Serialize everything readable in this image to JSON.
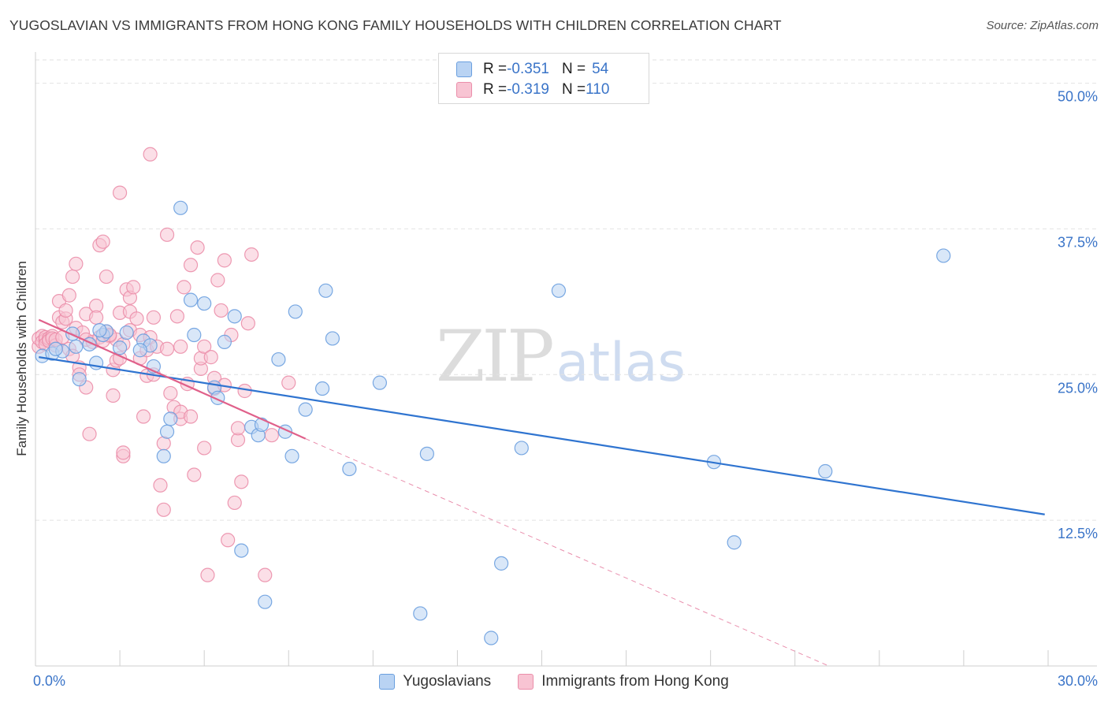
{
  "title": "YUGOSLAVIAN VS IMMIGRANTS FROM HONG KONG FAMILY HOUSEHOLDS WITH CHILDREN CORRELATION CHART",
  "source": "Source: ZipAtlas.com",
  "watermark": {
    "zip": "ZIP",
    "atlas": "atlas"
  },
  "legend": {
    "rows": [
      {
        "r_label": "R = ",
        "r_value": "-0.351",
        "n_label": "N = ",
        "n_value": "54"
      },
      {
        "r_label": "R = ",
        "r_value": "-0.319",
        "n_label": "N = ",
        "n_value": "110"
      }
    ]
  },
  "colors": {
    "blue_fill": "#b9d3f3",
    "blue_stroke": "#6a9fdf",
    "blue_line": "#2f74d0",
    "pink_fill": "#f8c4d3",
    "pink_stroke": "#eb8eaa",
    "pink_line": "#e0608a",
    "value_text": "#3a74c8",
    "grid": "#e2e2e2"
  },
  "chart_data": {
    "type": "scatter",
    "title": "YUGOSLAVIAN VS IMMIGRANTS FROM HONG KONG FAMILY HOUSEHOLDS WITH CHILDREN CORRELATION CHART",
    "xlabel": "",
    "ylabel": "Family Households with Children",
    "xlim": [
      0,
      30
    ],
    "ylim": [
      0,
      52
    ],
    "x_tick_labels": [
      "0.0%",
      "30.0%"
    ],
    "y_tick_labels": [
      "12.5%",
      "25.0%",
      "37.5%",
      "50.0%"
    ],
    "y_ticks": [
      12.5,
      25.0,
      37.5,
      50.0
    ],
    "grid": true,
    "legend_position": "bottom",
    "series": [
      {
        "name": "Yugoslavians",
        "color": "#6a9fdf",
        "r": -0.351,
        "n": 54,
        "trend": {
          "x": [
            0.1,
            29.9
          ],
          "y": [
            26.5,
            13.0
          ],
          "style": "solid"
        },
        "points": [
          [
            0.2,
            26.6
          ],
          [
            0.5,
            26.8
          ],
          [
            0.8,
            27.0
          ],
          [
            1.2,
            27.4
          ],
          [
            1.3,
            24.6
          ],
          [
            1.8,
            26.0
          ],
          [
            1.6,
            27.6
          ],
          [
            2.0,
            28.4
          ],
          [
            2.5,
            27.3
          ],
          [
            2.1,
            28.7
          ],
          [
            1.9,
            28.8
          ],
          [
            3.2,
            27.9
          ],
          [
            3.4,
            27.5
          ],
          [
            3.5,
            25.7
          ],
          [
            3.8,
            18.0
          ],
          [
            3.9,
            20.1
          ],
          [
            4.0,
            21.2
          ],
          [
            4.3,
            39.3
          ],
          [
            4.6,
            31.4
          ],
          [
            4.7,
            28.4
          ],
          [
            5.0,
            31.1
          ],
          [
            5.3,
            23.9
          ],
          [
            5.4,
            23.0
          ],
          [
            5.6,
            27.8
          ],
          [
            5.9,
            30.0
          ],
          [
            6.1,
            9.9
          ],
          [
            6.4,
            20.5
          ],
          [
            6.6,
            19.8
          ],
          [
            6.7,
            20.7
          ],
          [
            6.8,
            5.5
          ],
          [
            7.2,
            26.3
          ],
          [
            7.4,
            20.1
          ],
          [
            7.6,
            18.0
          ],
          [
            7.7,
            30.4
          ],
          [
            8.0,
            22.0
          ],
          [
            8.5,
            23.8
          ],
          [
            8.6,
            32.2
          ],
          [
            8.8,
            28.1
          ],
          [
            9.3,
            16.9
          ],
          [
            10.2,
            24.3
          ],
          [
            11.4,
            4.5
          ],
          [
            11.6,
            18.2
          ],
          [
            13.5,
            2.4
          ],
          [
            13.8,
            8.8
          ],
          [
            14.4,
            18.7
          ],
          [
            15.5,
            32.2
          ],
          [
            20.1,
            17.5
          ],
          [
            20.7,
            10.6
          ],
          [
            23.4,
            16.7
          ],
          [
            26.9,
            35.2
          ],
          [
            0.6,
            27.2
          ],
          [
            1.1,
            28.5
          ],
          [
            2.7,
            28.6
          ],
          [
            3.1,
            27.1
          ]
        ]
      },
      {
        "name": "Immigrants from Hong Kong",
        "color": "#eb8eaa",
        "r": -0.319,
        "n": 110,
        "trend": {
          "x": [
            0.1,
            8.0
          ],
          "y": [
            29.7,
            19.5
          ],
          "style": "solid"
        },
        "trend_extended": {
          "x": [
            8.0,
            23.5
          ],
          "y": [
            19.5,
            0.0
          ],
          "style": "dashed"
        },
        "points": [
          [
            0.1,
            27.4
          ],
          [
            0.1,
            28.1
          ],
          [
            0.2,
            28.3
          ],
          [
            0.2,
            27.8
          ],
          [
            0.3,
            28.0
          ],
          [
            0.3,
            28.2
          ],
          [
            0.3,
            27.6
          ],
          [
            0.4,
            28.1
          ],
          [
            0.4,
            27.9
          ],
          [
            0.5,
            28.3
          ],
          [
            0.5,
            28.1
          ],
          [
            0.6,
            27.5
          ],
          [
            0.6,
            28.0
          ],
          [
            0.7,
            29.9
          ],
          [
            0.7,
            31.3
          ],
          [
            0.8,
            28.2
          ],
          [
            0.8,
            29.5
          ],
          [
            0.9,
            29.8
          ],
          [
            0.9,
            30.5
          ],
          [
            1.0,
            31.8
          ],
          [
            1.0,
            27.2
          ],
          [
            1.1,
            26.6
          ],
          [
            1.1,
            33.4
          ],
          [
            1.2,
            34.5
          ],
          [
            1.2,
            29.0
          ],
          [
            1.3,
            25.6
          ],
          [
            1.3,
            25.0
          ],
          [
            1.4,
            28.6
          ],
          [
            1.5,
            30.2
          ],
          [
            1.5,
            28.0
          ],
          [
            1.5,
            23.9
          ],
          [
            1.6,
            19.9
          ],
          [
            1.7,
            27.8
          ],
          [
            1.8,
            30.9
          ],
          [
            1.8,
            29.9
          ],
          [
            1.9,
            36.1
          ],
          [
            1.9,
            28.2
          ],
          [
            2.0,
            36.4
          ],
          [
            2.1,
            28.7
          ],
          [
            2.1,
            33.4
          ],
          [
            2.2,
            28.3
          ],
          [
            2.3,
            23.2
          ],
          [
            2.3,
            25.4
          ],
          [
            2.4,
            28.0
          ],
          [
            2.4,
            26.2
          ],
          [
            2.5,
            30.3
          ],
          [
            2.5,
            26.4
          ],
          [
            2.5,
            40.6
          ],
          [
            2.6,
            18.0
          ],
          [
            2.6,
            18.3
          ],
          [
            2.7,
            32.3
          ],
          [
            2.8,
            31.6
          ],
          [
            2.8,
            28.8
          ],
          [
            2.8,
            30.4
          ],
          [
            2.9,
            32.5
          ],
          [
            3.0,
            29.8
          ],
          [
            3.1,
            28.4
          ],
          [
            3.1,
            26.4
          ],
          [
            3.2,
            21.4
          ],
          [
            3.3,
            24.9
          ],
          [
            3.3,
            27.1
          ],
          [
            3.4,
            43.9
          ],
          [
            3.4,
            28.2
          ],
          [
            3.5,
            29.9
          ],
          [
            3.5,
            25.0
          ],
          [
            3.6,
            27.4
          ],
          [
            3.7,
            15.5
          ],
          [
            3.8,
            13.4
          ],
          [
            3.8,
            19.1
          ],
          [
            3.9,
            37.0
          ],
          [
            3.9,
            27.2
          ],
          [
            4.0,
            23.4
          ],
          [
            4.1,
            22.2
          ],
          [
            4.2,
            30.0
          ],
          [
            4.3,
            21.2
          ],
          [
            4.3,
            21.8
          ],
          [
            4.3,
            27.4
          ],
          [
            4.4,
            32.5
          ],
          [
            4.5,
            24.2
          ],
          [
            4.6,
            21.4
          ],
          [
            4.6,
            34.4
          ],
          [
            4.7,
            16.4
          ],
          [
            4.8,
            35.9
          ],
          [
            4.9,
            25.5
          ],
          [
            4.9,
            26.4
          ],
          [
            5.0,
            27.4
          ],
          [
            5.0,
            18.7
          ],
          [
            5.1,
            7.8
          ],
          [
            5.2,
            26.5
          ],
          [
            5.3,
            23.8
          ],
          [
            5.3,
            24.7
          ],
          [
            5.4,
            33.1
          ],
          [
            5.5,
            30.5
          ],
          [
            5.6,
            34.8
          ],
          [
            5.6,
            24.1
          ],
          [
            5.7,
            10.8
          ],
          [
            5.8,
            28.4
          ],
          [
            5.9,
            14.0
          ],
          [
            6.0,
            19.4
          ],
          [
            6.0,
            20.4
          ],
          [
            6.1,
            15.8
          ],
          [
            6.2,
            23.6
          ],
          [
            6.3,
            29.4
          ],
          [
            6.4,
            35.3
          ],
          [
            6.8,
            7.8
          ],
          [
            7.0,
            19.8
          ],
          [
            7.5,
            24.3
          ],
          [
            2.0,
            27.9
          ],
          [
            2.2,
            28.4
          ],
          [
            2.6,
            27.6
          ]
        ]
      }
    ]
  }
}
